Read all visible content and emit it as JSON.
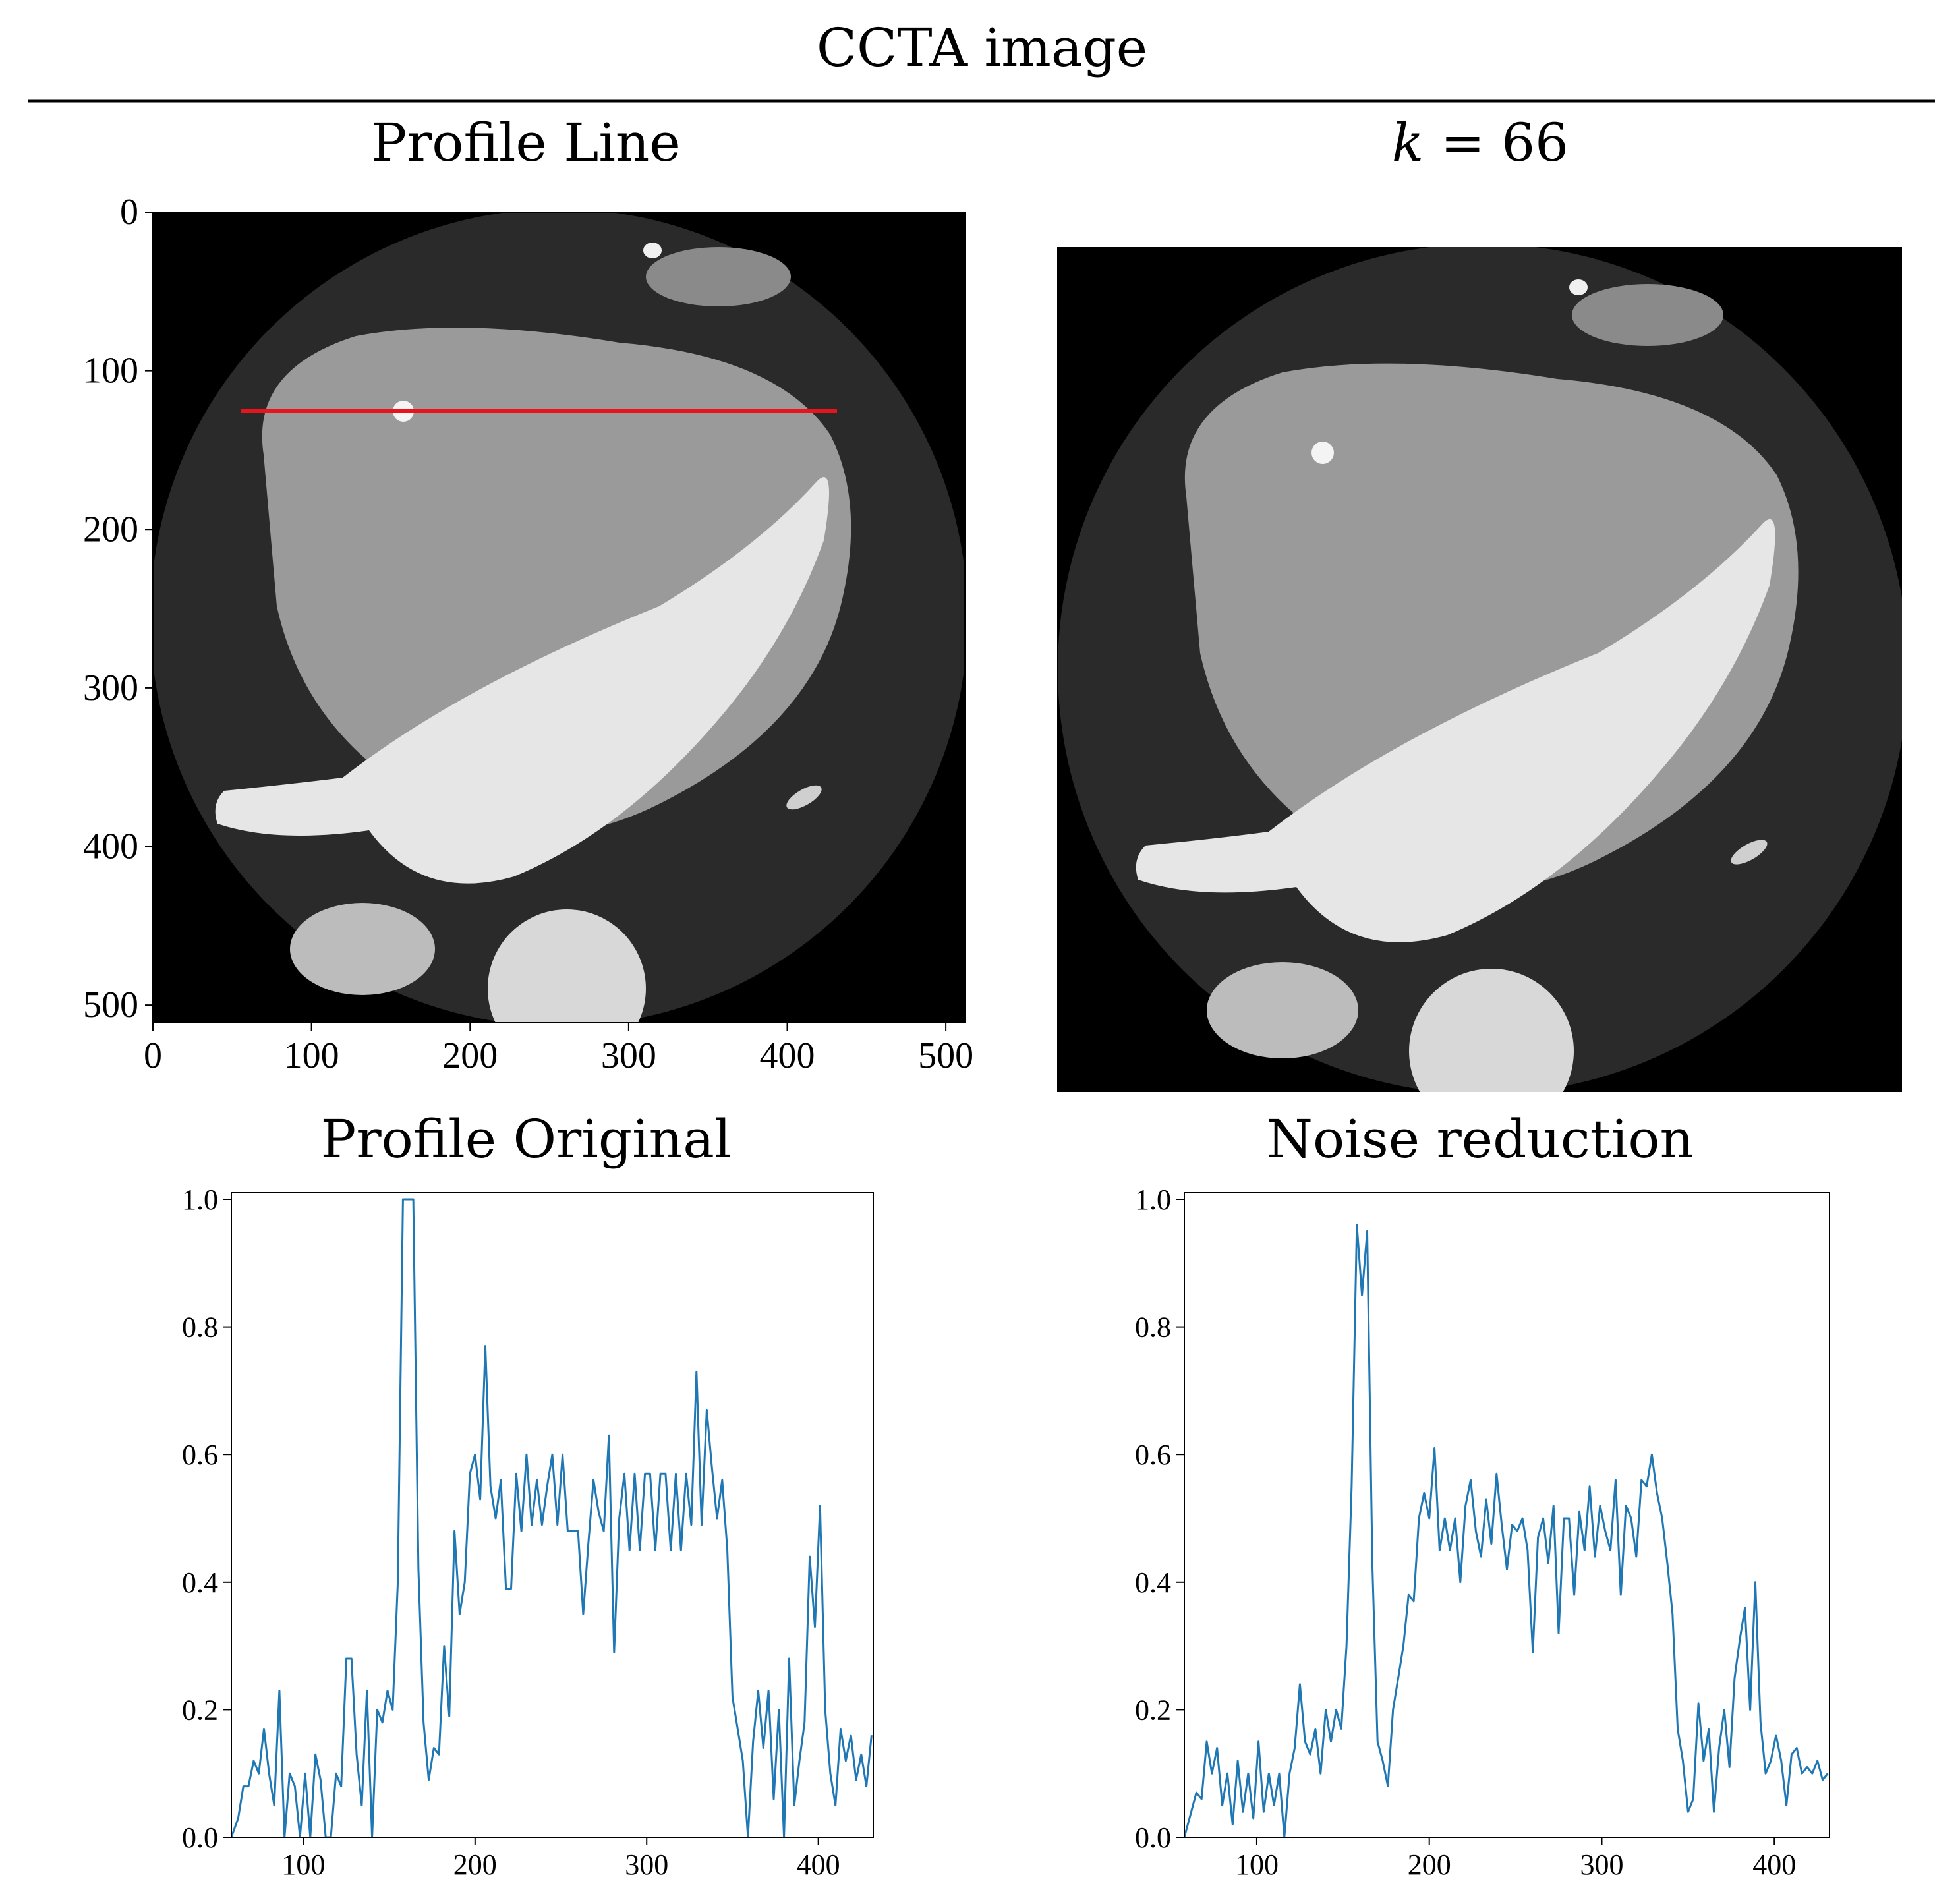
{
  "figure": {
    "title": "CCTA image"
  },
  "panels": {
    "profile_line": {
      "title": "Profile Line",
      "line_color": "#e8141c",
      "ct_label": "Original CCTA slice with red profile line",
      "x_ticks": [
        "0",
        "100",
        "200",
        "300",
        "400",
        "500"
      ],
      "y_ticks": [
        "0",
        "100",
        "200",
        "300",
        "400",
        "500"
      ]
    },
    "denoised_image": {
      "title_var": "k",
      "title_rest": " = 66",
      "ct_label": "Denoised CCTA slice"
    }
  },
  "chart_data": [
    {
      "type": "line",
      "title": "Profile Original",
      "xlabel": "",
      "ylabel": "",
      "xlim": [
        58,
        432
      ],
      "ylim": [
        0,
        1
      ],
      "x_ticks": [
        100,
        200,
        300,
        400
      ],
      "y_ticks": [
        0.0,
        0.2,
        0.4,
        0.6,
        0.8,
        1.0
      ],
      "color": "#1f77b4",
      "series": [
        {
          "name": "Profile Original",
          "x": [
            58,
            62,
            65,
            68,
            71,
            74,
            77,
            80,
            83,
            86,
            89,
            92,
            95,
            98,
            101,
            104,
            107,
            110,
            113,
            116,
            119,
            122,
            125,
            128,
            131,
            134,
            137,
            140,
            143,
            146,
            149,
            152,
            155,
            158,
            161,
            164,
            167,
            170,
            173,
            176,
            179,
            182,
            185,
            188,
            191,
            194,
            197,
            200,
            203,
            206,
            209,
            212,
            215,
            218,
            221,
            224,
            227,
            230,
            233,
            236,
            239,
            242,
            245,
            248,
            251,
            254,
            257,
            260,
            263,
            266,
            269,
            272,
            275,
            278,
            281,
            284,
            287,
            290,
            293,
            296,
            299,
            302,
            305,
            308,
            311,
            314,
            317,
            320,
            323,
            326,
            329,
            332,
            335,
            338,
            341,
            344,
            347,
            350,
            353,
            356,
            359,
            362,
            365,
            368,
            371,
            374,
            377,
            380,
            383,
            386,
            389,
            392,
            395,
            398,
            401,
            404,
            407,
            410,
            413,
            416,
            419,
            422,
            425,
            428,
            431
          ],
          "y": [
            0.0,
            0.03,
            0.08,
            0.08,
            0.12,
            0.1,
            0.17,
            0.1,
            0.05,
            0.23,
            0.0,
            0.1,
            0.08,
            0.0,
            0.1,
            0.0,
            0.13,
            0.09,
            0.0,
            0.0,
            0.1,
            0.08,
            0.28,
            0.28,
            0.13,
            0.05,
            0.23,
            0.0,
            0.2,
            0.18,
            0.23,
            0.2,
            0.4,
            1.0,
            1.0,
            1.0,
            0.42,
            0.18,
            0.09,
            0.14,
            0.13,
            0.3,
            0.19,
            0.48,
            0.35,
            0.4,
            0.57,
            0.6,
            0.53,
            0.77,
            0.55,
            0.5,
            0.56,
            0.39,
            0.39,
            0.57,
            0.48,
            0.6,
            0.49,
            0.56,
            0.49,
            0.55,
            0.6,
            0.49,
            0.6,
            0.48,
            0.48,
            0.48,
            0.35,
            0.46,
            0.56,
            0.51,
            0.48,
            0.63,
            0.29,
            0.5,
            0.57,
            0.45,
            0.57,
            0.45,
            0.57,
            0.57,
            0.45,
            0.57,
            0.57,
            0.45,
            0.57,
            0.45,
            0.57,
            0.49,
            0.73,
            0.49,
            0.67,
            0.58,
            0.5,
            0.56,
            0.45,
            0.22,
            0.17,
            0.12,
            0.0,
            0.15,
            0.23,
            0.14,
            0.23,
            0.06,
            0.2,
            0.0,
            0.28,
            0.05,
            0.12,
            0.18,
            0.44,
            0.33,
            0.52,
            0.2,
            0.1,
            0.05,
            0.17,
            0.12,
            0.16,
            0.09,
            0.13,
            0.08,
            0.16
          ]
        }
      ]
    },
    {
      "type": "line",
      "title": "Noise reduction",
      "xlabel": "",
      "ylabel": "",
      "xlim": [
        58,
        432
      ],
      "ylim": [
        0,
        1
      ],
      "x_ticks": [
        100,
        200,
        300,
        400
      ],
      "y_ticks": [
        0.0,
        0.2,
        0.4,
        0.6,
        0.8,
        1.0
      ],
      "color": "#1f77b4",
      "series": [
        {
          "name": "Noise reduction",
          "x": [
            58,
            62,
            65,
            68,
            71,
            74,
            77,
            80,
            83,
            86,
            89,
            92,
            95,
            98,
            101,
            104,
            107,
            110,
            113,
            116,
            119,
            122,
            125,
            128,
            131,
            134,
            137,
            140,
            143,
            146,
            149,
            152,
            155,
            158,
            161,
            164,
            167,
            170,
            173,
            176,
            179,
            182,
            185,
            188,
            191,
            194,
            197,
            200,
            203,
            206,
            209,
            212,
            215,
            218,
            221,
            224,
            227,
            230,
            233,
            236,
            239,
            242,
            245,
            248,
            251,
            254,
            257,
            260,
            263,
            266,
            269,
            272,
            275,
            278,
            281,
            284,
            287,
            290,
            293,
            296,
            299,
            302,
            305,
            308,
            311,
            314,
            317,
            320,
            323,
            326,
            329,
            332,
            335,
            338,
            341,
            344,
            347,
            350,
            353,
            356,
            359,
            362,
            365,
            368,
            371,
            374,
            377,
            380,
            383,
            386,
            389,
            392,
            395,
            398,
            401,
            404,
            407,
            410,
            413,
            416,
            419,
            422,
            425,
            428,
            431
          ],
          "y": [
            0.0,
            0.04,
            0.07,
            0.06,
            0.15,
            0.1,
            0.14,
            0.05,
            0.1,
            0.02,
            0.12,
            0.04,
            0.1,
            0.03,
            0.15,
            0.04,
            0.1,
            0.05,
            0.1,
            0.0,
            0.1,
            0.14,
            0.24,
            0.15,
            0.13,
            0.17,
            0.1,
            0.2,
            0.15,
            0.2,
            0.17,
            0.3,
            0.55,
            0.96,
            0.85,
            0.95,
            0.43,
            0.15,
            0.12,
            0.08,
            0.2,
            0.25,
            0.3,
            0.38,
            0.37,
            0.5,
            0.54,
            0.5,
            0.61,
            0.45,
            0.5,
            0.45,
            0.5,
            0.4,
            0.52,
            0.56,
            0.48,
            0.44,
            0.53,
            0.46,
            0.57,
            0.49,
            0.42,
            0.49,
            0.48,
            0.5,
            0.45,
            0.29,
            0.47,
            0.5,
            0.43,
            0.52,
            0.32,
            0.5,
            0.5,
            0.38,
            0.51,
            0.45,
            0.55,
            0.44,
            0.52,
            0.48,
            0.45,
            0.56,
            0.38,
            0.52,
            0.5,
            0.44,
            0.56,
            0.55,
            0.6,
            0.54,
            0.5,
            0.43,
            0.35,
            0.17,
            0.12,
            0.04,
            0.06,
            0.21,
            0.12,
            0.17,
            0.04,
            0.14,
            0.2,
            0.11,
            0.25,
            0.31,
            0.36,
            0.2,
            0.4,
            0.18,
            0.1,
            0.12,
            0.16,
            0.12,
            0.05,
            0.13,
            0.14,
            0.1,
            0.11,
            0.1,
            0.12,
            0.09,
            0.1
          ]
        }
      ]
    }
  ]
}
